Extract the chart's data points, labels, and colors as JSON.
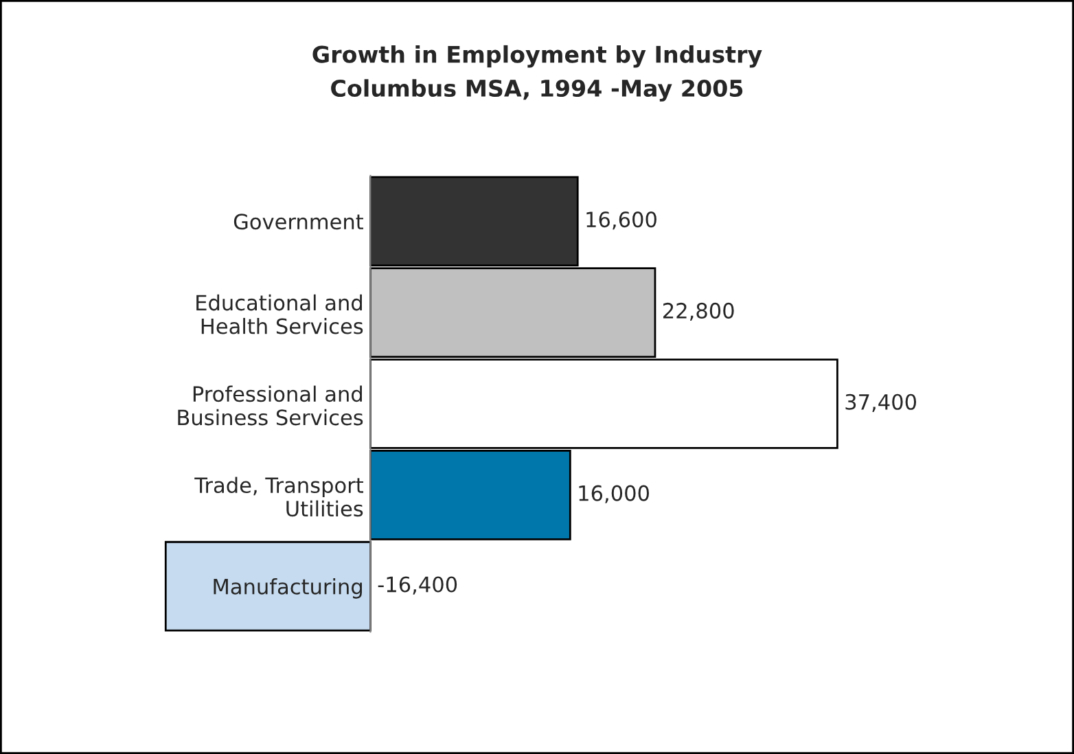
{
  "chart_data": {
    "type": "bar",
    "orientation": "horizontal",
    "title": "Growth in Employment by Industry",
    "subtitle": "Columbus MSA, 1994 -May 2005",
    "categories": [
      "Government",
      "Educational and\nHealth Services",
      "Professional and\nBusiness Services",
      "Trade, Transport\nUtilities",
      "Manufacturing"
    ],
    "values": [
      16600,
      22800,
      37400,
      16000,
      -16400
    ],
    "colors": [
      "#333333",
      "#c0c0c0",
      "#ffffff",
      "#0077aa",
      "#c6dbef"
    ],
    "value_labels": [
      "16,600",
      "22,800",
      "37,400",
      "16,000",
      "-16,400"
    ],
    "legend": false,
    "grid": false,
    "tick_labels": "y"
  }
}
